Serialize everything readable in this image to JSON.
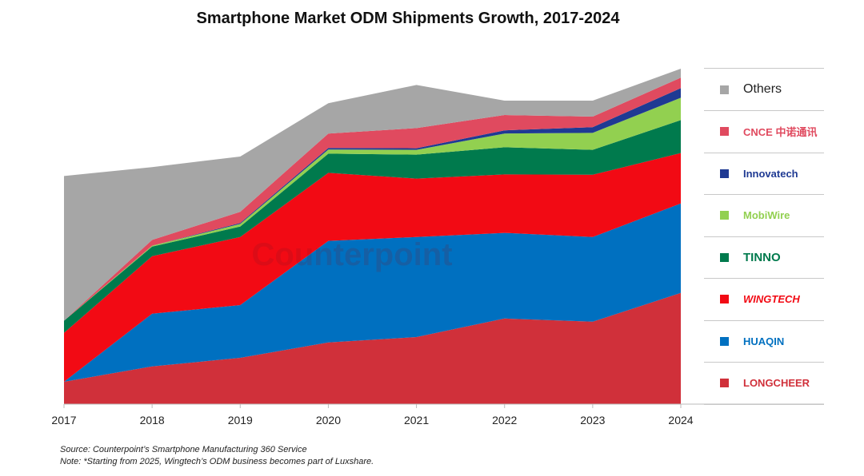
{
  "title": "Smartphone Market ODM Shipments Growth, 2017-2024",
  "watermark": "Counterpoint",
  "source": "Source: Counterpoint’s Smartphone Manufacturing 360 Service",
  "note": "Note: *Starting from 2025, Wingtech’s ODM business becomes part of Luxshare.",
  "chart_data": {
    "type": "area",
    "stacked": true,
    "title": "Smartphone Market ODM Shipments Growth, 2017-2024",
    "x": [
      "2017",
      "2018",
      "2019",
      "2020",
      "2021",
      "2022",
      "2023",
      "2024"
    ],
    "y_axis_shown": false,
    "ylim": [
      0,
      105
    ],
    "grid": false,
    "legend_placement": "right",
    "series": [
      {
        "name": "LONGCHEER",
        "color": "#d0303a",
        "values": [
          7,
          11.8,
          14.5,
          19.3,
          21,
          26.8,
          25.8,
          34.8
        ]
      },
      {
        "name": "HUAQIN",
        "color": "#0070c0",
        "values": [
          0,
          16.5,
          16.5,
          31.8,
          31.3,
          26.8,
          26.5,
          28
        ]
      },
      {
        "name": "WINGTECH",
        "color": "#f20a14",
        "values": [
          15.3,
          18,
          21.3,
          21.3,
          18.3,
          18.3,
          19.5,
          15.8
        ]
      },
      {
        "name": "TINNO",
        "color": "#007a4d",
        "values": [
          3.8,
          3,
          3.3,
          6,
          7.5,
          8.5,
          7.8,
          10.3
        ]
      },
      {
        "name": "MobiWire",
        "color": "#92d050",
        "values": [
          0,
          0.3,
          0.8,
          1.3,
          1.5,
          4.3,
          5.3,
          7
        ]
      },
      {
        "name": "Innovatech",
        "color": "#1f3a93",
        "values": [
          0,
          0,
          0.3,
          0.5,
          0.5,
          1,
          1.8,
          3
        ]
      },
      {
        "name": "CNCE 中诺通讯",
        "color": "#e04a5f",
        "values": [
          0,
          1.8,
          3.5,
          4.5,
          6.3,
          4.8,
          3.3,
          3.3
        ]
      },
      {
        "name": "Others",
        "color": "#a6a6a6",
        "values": [
          45.3,
          22.8,
          17.3,
          9.5,
          13.5,
          4.5,
          5,
          2.8
        ]
      }
    ]
  }
}
